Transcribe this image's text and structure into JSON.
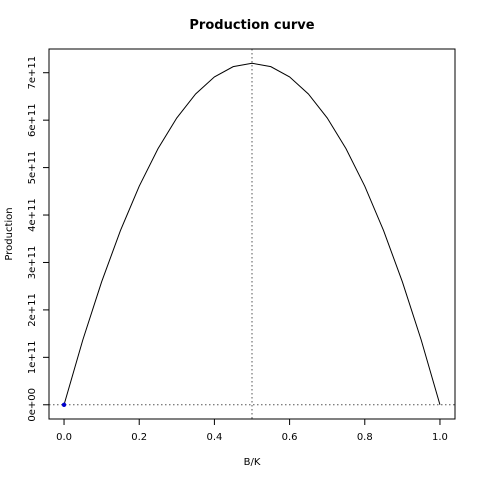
{
  "chart_data": {
    "type": "line",
    "title": "Production curve",
    "xlabel": "B/K",
    "ylabel": "Production",
    "xlim": [
      -0.04,
      1.04
    ],
    "ylim": [
      -30000000000.0,
      750000000000.0
    ],
    "xticks": [
      0,
      0.2,
      0.4,
      0.6,
      0.8,
      1.0
    ],
    "xtick_labels": [
      "0.0",
      "0.2",
      "0.4",
      "0.6",
      "0.8",
      "1.0"
    ],
    "yticks": [
      0,
      100000000000.0,
      200000000000.0,
      300000000000.0,
      400000000000.0,
      500000000000.0,
      600000000000.0,
      700000000000.0
    ],
    "ytick_labels": [
      "0e+00",
      "1e+11",
      "2e+11",
      "3e+11",
      "4e+11",
      "5e+11",
      "6e+11",
      "7e+11"
    ],
    "series": [
      {
        "x": [
          0,
          0.05,
          0.1,
          0.15,
          0.2,
          0.25,
          0.3,
          0.35,
          0.4,
          0.45,
          0.5,
          0.55,
          0.6,
          0.65,
          0.7,
          0.75,
          0.8,
          0.85,
          0.9,
          0.95,
          1.0
        ],
        "y": [
          0,
          136800000000.0,
          259200000000.0,
          367200000000.0,
          460800000000.0,
          540000000000.0,
          604800000000.0,
          655200000000.0,
          691200000000.0,
          712800000000.0,
          720000000000.0,
          712800000000.0,
          691200000000.0,
          655200000000.0,
          604800000000.0,
          540000000000.0,
          460800000000.0,
          367200000000.0,
          259200000000.0,
          136800000000.0,
          0
        ],
        "color": "#000000"
      }
    ],
    "reference_lines": {
      "vertical_x": 0.5,
      "horizontal_y": 0,
      "style": "dotted",
      "color": "#555555"
    },
    "points": [
      {
        "x": 0.0,
        "y": 0,
        "color": "#0000cc"
      }
    ]
  }
}
